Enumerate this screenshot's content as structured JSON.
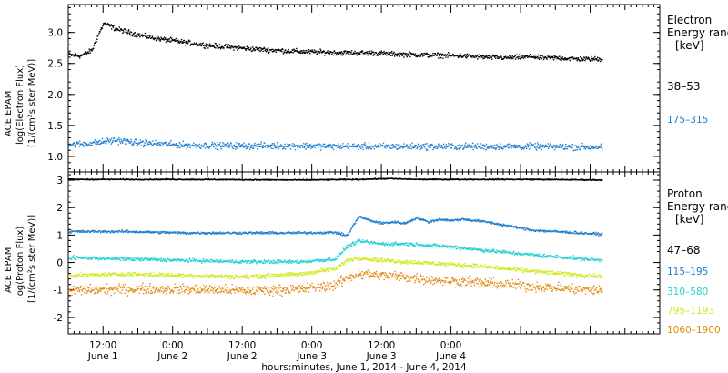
{
  "chart_data": [
    {
      "type": "scatter",
      "panel": "electron",
      "title": "",
      "ylabel_lines": [
        "ACE EPAM",
        "log(Electron Flux)",
        "[1/(cm²s ster MeV)]"
      ],
      "ylim": [
        0.75,
        3.45
      ],
      "yticks": [
        1.0,
        1.5,
        2.0,
        2.5,
        3.0
      ],
      "ytick_labels": [
        "1.0",
        "1.5",
        "2.0",
        "2.5",
        "3.0"
      ],
      "legend_title_lines": [
        "Electron",
        "Energy range",
        "[keV]"
      ],
      "series": [
        {
          "name": "38–53",
          "color": "#000000",
          "x": [
            0,
            2,
            4,
            5,
            6,
            7,
            8,
            10,
            12,
            14,
            16,
            20,
            24,
            28,
            32,
            36,
            40,
            44,
            48,
            52,
            56,
            60,
            64,
            68,
            72,
            76,
            80,
            81,
            84,
            88,
            92
          ],
          "y": [
            2.65,
            2.63,
            2.72,
            2.95,
            3.15,
            3.12,
            3.07,
            3.02,
            2.97,
            2.93,
            2.9,
            2.85,
            2.8,
            2.77,
            2.74,
            2.72,
            2.7,
            2.69,
            2.68,
            2.68,
            2.66,
            2.65,
            2.64,
            2.63,
            2.61,
            2.6,
            2.62,
            2.6,
            2.6,
            2.58,
            2.58
          ],
          "spread": 0.06
        },
        {
          "name": "175–315",
          "color": "#1f7fd0",
          "x": [
            0,
            4,
            8,
            12,
            20,
            30,
            40,
            50,
            60,
            70,
            80,
            92
          ],
          "y": [
            1.2,
            1.22,
            1.27,
            1.23,
            1.19,
            1.18,
            1.18,
            1.17,
            1.17,
            1.17,
            1.17,
            1.16
          ],
          "spread": 0.08
        }
      ]
    },
    {
      "type": "scatter",
      "panel": "proton",
      "title": "",
      "xlabel": "hours:minutes, June  1, 2014 - June  4, 2014",
      "ylabel_lines": [
        "ACE EPAM",
        "log(Proton Flux)",
        "[1/(cm²s ster MeV)]"
      ],
      "ylim": [
        -2.6,
        3.3
      ],
      "yticks": [
        -2,
        -1,
        0,
        1,
        2,
        3
      ],
      "ytick_labels": [
        "-2",
        "-1",
        "0",
        "1",
        "2",
        "3"
      ],
      "xlim": [
        0,
        102
      ],
      "xticks": [
        0,
        6,
        18,
        30,
        42,
        54,
        66,
        78,
        90,
        102
      ],
      "major_xticks": [
        6,
        18,
        30,
        42,
        54,
        66,
        78,
        90
      ],
      "xtick_labels": [
        {
          "x": 6,
          "time": "12:00",
          "date": "June 1"
        },
        {
          "x": 18,
          "time": "0:00",
          "date": "June 2"
        },
        {
          "x": 30,
          "time": "12:00",
          "date": "June 2"
        },
        {
          "x": 42,
          "time": "0:00",
          "date": "June 3"
        },
        {
          "x": 54,
          "time": "12:00",
          "date": "June 3"
        },
        {
          "x": 66,
          "time": "0:00",
          "date": "June 4"
        }
      ],
      "legend_title_lines": [
        "Proton",
        "Energy range",
        "[keV]"
      ],
      "series": [
        {
          "name": "47–68",
          "color": "#000000",
          "x": [
            0,
            20,
            40,
            50,
            55,
            60,
            70,
            80,
            92
          ],
          "y": [
            3.05,
            3.05,
            3.03,
            3.05,
            3.08,
            3.05,
            3.05,
            3.05,
            3.03
          ],
          "spread": 0.03
        },
        {
          "name": "115–195",
          "color": "#1f7fd0",
          "x": [
            0,
            10,
            20,
            30,
            40,
            46,
            48,
            50,
            52,
            54,
            56,
            58,
            60,
            62,
            64,
            66,
            68,
            72,
            80,
            92
          ],
          "y": [
            1.15,
            1.15,
            1.1,
            1.1,
            1.1,
            1.12,
            1.0,
            1.7,
            1.55,
            1.45,
            1.5,
            1.45,
            1.65,
            1.5,
            1.6,
            1.55,
            1.6,
            1.5,
            1.2,
            1.05
          ],
          "spread": 0.07
        },
        {
          "name": "310–580",
          "color": "#22d0d0",
          "x": [
            0,
            10,
            20,
            30,
            40,
            46,
            48,
            50,
            54,
            58,
            62,
            66,
            70,
            80,
            92
          ],
          "y": [
            0.2,
            0.15,
            0.1,
            0.05,
            0.05,
            0.15,
            0.6,
            0.8,
            0.7,
            0.7,
            0.65,
            0.6,
            0.5,
            0.3,
            0.1
          ],
          "spread": 0.1
        },
        {
          "name": "795–1193",
          "color": "#cdea1a",
          "x": [
            0,
            10,
            20,
            30,
            40,
            46,
            48,
            50,
            54,
            58,
            62,
            66,
            70,
            80,
            92
          ],
          "y": [
            -0.45,
            -0.4,
            -0.45,
            -0.5,
            -0.4,
            -0.2,
            0.1,
            0.2,
            0.1,
            0.05,
            0.0,
            -0.05,
            -0.1,
            -0.3,
            -0.5
          ],
          "spread": 0.12
        },
        {
          "name": "1060–1900",
          "color": "#e3870f",
          "x": [
            0,
            10,
            20,
            30,
            40,
            46,
            48,
            50,
            54,
            58,
            62,
            66,
            70,
            80,
            92
          ],
          "y": [
            -1.0,
            -0.95,
            -0.95,
            -1.0,
            -0.95,
            -0.8,
            -0.55,
            -0.4,
            -0.45,
            -0.5,
            -0.6,
            -0.65,
            -0.7,
            -0.85,
            -1.0
          ],
          "spread": 0.28
        }
      ]
    }
  ]
}
